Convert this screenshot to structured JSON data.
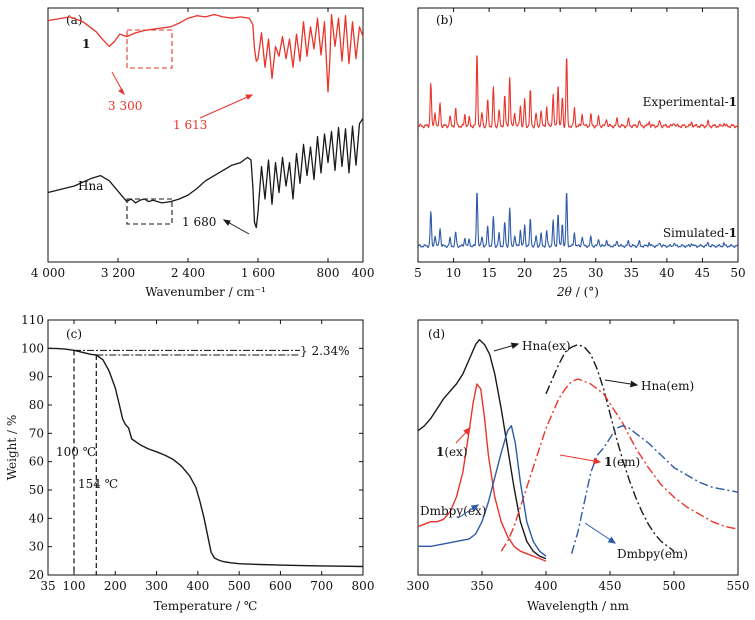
{
  "colors": {
    "black": "#1a1a1a",
    "red": "#e8352b",
    "blue": "#2e5aa8",
    "pink_dash": "#e8352b"
  },
  "chart_data": [
    {
      "panel": "(a)",
      "type": "line",
      "xlabel": "Wavenumber / cm⁻¹",
      "ylabel": "",
      "xlim": [
        4000,
        400
      ],
      "x_ticks": [
        "4 000",
        "3 200",
        "2 400",
        "1 600",
        "800",
        "400"
      ],
      "x_tick_values": [
        4000,
        3200,
        2400,
        1600,
        800,
        400
      ],
      "series": [
        {
          "name": "1",
          "color": "red",
          "x": [
            4000,
            3750,
            3600,
            3450,
            3380,
            3300,
            3240,
            3180,
            3100,
            3000,
            2900,
            2800,
            2700,
            2600,
            2500,
            2400,
            2300,
            2200,
            2100,
            2000,
            1900,
            1800,
            1700,
            1660,
            1640,
            1620,
            1600,
            1560,
            1520,
            1480,
            1440,
            1400,
            1360,
            1320,
            1280,
            1240,
            1200,
            1160,
            1120,
            1080,
            1040,
            1000,
            960,
            920,
            880,
            840,
            800,
            780,
            760,
            720,
            680,
            640,
            600,
            560,
            520,
            480,
            440,
            400
          ],
          "y": [
            0.93,
            0.96,
            0.92,
            0.84,
            0.78,
            0.72,
            0.76,
            0.82,
            0.8,
            0.83,
            0.85,
            0.86,
            0.87,
            0.88,
            0.91,
            0.95,
            0.97,
            0.96,
            0.98,
            0.96,
            0.95,
            0.96,
            0.95,
            0.9,
            0.7,
            0.6,
            0.62,
            0.83,
            0.55,
            0.78,
            0.46,
            0.72,
            0.64,
            0.8,
            0.62,
            0.78,
            0.55,
            0.82,
            0.6,
            0.92,
            0.64,
            0.88,
            0.7,
            0.95,
            0.65,
            0.92,
            0.35,
            0.6,
            0.98,
            0.72,
            0.95,
            0.6,
            0.97,
            0.58,
            0.92,
            0.62,
            0.88,
            0.8
          ]
        },
        {
          "name": "Hna",
          "color": "black",
          "x": [
            4000,
            3700,
            3500,
            3400,
            3300,
            3200,
            3150,
            3100,
            3050,
            3000,
            2950,
            2900,
            2850,
            2800,
            2700,
            2600,
            2500,
            2400,
            2300,
            2200,
            2100,
            2000,
            1900,
            1800,
            1720,
            1680,
            1660,
            1640,
            1620,
            1600,
            1560,
            1520,
            1480,
            1440,
            1400,
            1360,
            1320,
            1280,
            1240,
            1200,
            1160,
            1120,
            1080,
            1040,
            1000,
            960,
            920,
            880,
            840,
            800,
            760,
            720,
            680,
            640,
            600,
            560,
            520,
            480,
            440,
            400
          ],
          "y": [
            0.35,
            0.4,
            0.46,
            0.48,
            0.44,
            0.36,
            0.32,
            0.28,
            0.3,
            0.27,
            0.29,
            0.3,
            0.28,
            0.29,
            0.27,
            0.28,
            0.3,
            0.33,
            0.38,
            0.44,
            0.48,
            0.52,
            0.56,
            0.58,
            0.62,
            0.6,
            0.4,
            0.12,
            0.08,
            0.2,
            0.55,
            0.3,
            0.6,
            0.26,
            0.58,
            0.35,
            0.62,
            0.4,
            0.58,
            0.3,
            0.65,
            0.42,
            0.72,
            0.48,
            0.7,
            0.45,
            0.78,
            0.5,
            0.8,
            0.58,
            0.82,
            0.52,
            0.85,
            0.55,
            0.84,
            0.5,
            0.86,
            0.56,
            0.88,
            0.92
          ]
        }
      ],
      "annotations": [
        "1",
        "3 300",
        "1 613",
        "Hna",
        "1 680"
      ]
    },
    {
      "panel": "(b)",
      "type": "line",
      "xlabel": "2θ / (°)",
      "xlim": [
        5,
        50
      ],
      "x_ticks": [
        "5",
        "10",
        "15",
        "20",
        "25",
        "30",
        "35",
        "40",
        "45",
        "50"
      ],
      "x_tick_values": [
        5,
        10,
        15,
        20,
        25,
        30,
        35,
        40,
        45,
        50
      ],
      "series": [
        {
          "name": "Experimental-1",
          "color": "red"
        },
        {
          "name": "Simulated-1",
          "color": "blue"
        }
      ],
      "peaks_2theta": [
        6.8,
        7.4,
        8.1,
        9.5,
        10.3,
        11.6,
        12.2,
        13.3,
        14.0,
        14.8,
        15.6,
        16.4,
        17.2,
        17.9,
        18.6,
        19.4,
        20.0,
        20.8,
        21.6,
        22.3,
        23.1,
        24.0,
        24.7,
        25.3,
        25.9,
        27.0,
        28.1,
        29.3,
        30.4,
        31.5,
        33.0,
        34.6,
        36.1,
        37.5,
        39.0,
        41.0,
        43.5,
        45.8,
        48.0
      ],
      "peak_heights": [
        0.55,
        0.18,
        0.3,
        0.12,
        0.22,
        0.14,
        0.1,
        0.92,
        0.16,
        0.32,
        0.48,
        0.2,
        0.38,
        0.62,
        0.18,
        0.26,
        0.34,
        0.44,
        0.16,
        0.2,
        0.24,
        0.4,
        0.52,
        0.36,
        0.88,
        0.22,
        0.16,
        0.14,
        0.12,
        0.1,
        0.09,
        0.08,
        0.07,
        0.06,
        0.06,
        0.05,
        0.05,
        0.05,
        0.04
      ]
    },
    {
      "panel": "(c)",
      "type": "line",
      "xlabel": "Temperature / ℃",
      "ylabel": "Weight / %",
      "xlim": [
        35,
        800
      ],
      "ylim": [
        20,
        110
      ],
      "x_ticks": [
        "35",
        "100",
        "200",
        "300",
        "400",
        "500",
        "600",
        "700",
        "800"
      ],
      "x_tick_values": [
        35,
        100,
        200,
        300,
        400,
        500,
        600,
        700,
        800
      ],
      "y_ticks": [
        "20",
        "30",
        "40",
        "50",
        "60",
        "70",
        "80",
        "90",
        "100",
        "110"
      ],
      "y_tick_values": [
        20,
        30,
        40,
        50,
        60,
        70,
        80,
        90,
        100,
        110
      ],
      "series": [
        {
          "name": "",
          "color": "black",
          "x": [
            35,
            60,
            80,
            100,
            120,
            140,
            154,
            170,
            185,
            200,
            210,
            218,
            225,
            232,
            240,
            260,
            280,
            300,
            320,
            340,
            360,
            380,
            395,
            405,
            415,
            425,
            432,
            440,
            450,
            460,
            480,
            500,
            550,
            600,
            650,
            700,
            750,
            800
          ],
          "y": [
            100,
            99.9,
            99.7,
            99.3,
            98.6,
            97.9,
            97.66,
            96,
            92,
            86,
            80,
            75,
            73,
            72,
            68,
            66,
            64.5,
            63.5,
            62.3,
            60.8,
            58.5,
            55,
            51,
            46,
            40,
            33,
            28,
            26,
            25.3,
            24.8,
            24.3,
            24,
            23.7,
            23.5,
            23.3,
            23.2,
            23.1,
            23
          ]
        }
      ],
      "annotations": [
        "2.34%",
        "100 ℃",
        "154 ℃"
      ]
    },
    {
      "panel": "(d)",
      "type": "line",
      "xlabel": "Wavelength / nm",
      "xlim": [
        300,
        550
      ],
      "x_ticks": [
        "300",
        "350",
        "400",
        "450",
        "500",
        "550"
      ],
      "x_tick_values": [
        300,
        350,
        400,
        450,
        500,
        550
      ],
      "series": [
        {
          "name": "Hna(ex)",
          "color": "black",
          "dash": "solid",
          "x": [
            300,
            305,
            310,
            315,
            320,
            325,
            330,
            335,
            340,
            345,
            348,
            352,
            356,
            360,
            365,
            370,
            375,
            380,
            385,
            390,
            395,
            400
          ],
          "y": [
            0.55,
            0.57,
            0.6,
            0.64,
            0.68,
            0.71,
            0.74,
            0.78,
            0.84,
            0.9,
            0.92,
            0.9,
            0.86,
            0.78,
            0.64,
            0.48,
            0.32,
            0.18,
            0.1,
            0.06,
            0.04,
            0.03
          ]
        },
        {
          "name": "Hna(em)",
          "color": "black",
          "dash": "dashdot",
          "x": [
            400,
            405,
            410,
            415,
            420,
            425,
            430,
            435,
            440,
            445,
            450,
            455,
            460,
            465,
            470,
            475,
            480,
            485,
            490,
            495,
            500
          ],
          "y": [
            0.7,
            0.76,
            0.82,
            0.87,
            0.89,
            0.9,
            0.89,
            0.86,
            0.8,
            0.72,
            0.62,
            0.52,
            0.43,
            0.35,
            0.28,
            0.22,
            0.17,
            0.13,
            0.1,
            0.08,
            0.06
          ]
        },
        {
          "name": "1(ex)",
          "color": "red",
          "dash": "solid",
          "x": [
            300,
            305,
            310,
            315,
            320,
            325,
            330,
            335,
            340,
            343,
            346,
            349,
            352,
            355,
            360,
            365,
            370,
            375,
            380,
            385,
            390,
            395,
            400
          ],
          "y": [
            0.16,
            0.17,
            0.18,
            0.18,
            0.19,
            0.22,
            0.28,
            0.38,
            0.55,
            0.66,
            0.74,
            0.72,
            0.6,
            0.45,
            0.28,
            0.18,
            0.12,
            0.08,
            0.06,
            0.05,
            0.04,
            0.03,
            0.02
          ]
        },
        {
          "name": "1(em)",
          "color": "red",
          "dash": "dashdot",
          "x": [
            365,
            370,
            375,
            380,
            385,
            390,
            395,
            400,
            405,
            410,
            415,
            420,
            425,
            430,
            435,
            440,
            445,
            450,
            460,
            470,
            480,
            490,
            500,
            510,
            520,
            530,
            540,
            550
          ],
          "y": [
            0.06,
            0.1,
            0.16,
            0.24,
            0.32,
            0.4,
            0.48,
            0.56,
            0.62,
            0.68,
            0.72,
            0.75,
            0.76,
            0.75,
            0.74,
            0.72,
            0.7,
            0.66,
            0.58,
            0.48,
            0.4,
            0.33,
            0.28,
            0.24,
            0.21,
            0.18,
            0.16,
            0.15
          ]
        },
        {
          "name": "Dmbpy(ex)",
          "color": "blue",
          "dash": "solid",
          "x": [
            300,
            310,
            320,
            330,
            340,
            345,
            350,
            355,
            360,
            365,
            370,
            373,
            376,
            380,
            385,
            390,
            395,
            400
          ],
          "y": [
            0.08,
            0.08,
            0.09,
            0.1,
            0.11,
            0.13,
            0.18,
            0.26,
            0.36,
            0.46,
            0.55,
            0.57,
            0.5,
            0.34,
            0.18,
            0.1,
            0.06,
            0.04
          ]
        },
        {
          "name": "Dmbpy(em)",
          "color": "blue",
          "dash": "dashdot",
          "x": [
            420,
            425,
            430,
            435,
            440,
            445,
            450,
            455,
            460,
            465,
            470,
            480,
            490,
            500,
            510,
            520,
            530,
            540,
            550
          ],
          "y": [
            0.05,
            0.14,
            0.26,
            0.38,
            0.45,
            0.48,
            0.52,
            0.56,
            0.57,
            0.56,
            0.54,
            0.5,
            0.45,
            0.4,
            0.37,
            0.34,
            0.32,
            0.31,
            0.3
          ]
        }
      ]
    }
  ],
  "panel_labels": {
    "a": "(a)",
    "b": "(b)",
    "c": "(c)",
    "d": "(d)"
  },
  "labels": {
    "a_series1": "1",
    "a_3300": "3 300",
    "a_1613": "1 613",
    "a_hna": "Hna",
    "a_1680": "1 680",
    "a_xlabel": "Wavenumber / cm⁻¹",
    "b_exp": "Experimental-",
    "b_sim": "Simulated-",
    "b_one": "1",
    "b_xlabel_theta": "2θ",
    "b_xlabel_unit": " / (°)",
    "c_xlabel": "Temperature / ℃",
    "c_ylabel": "Weight / %",
    "c_pct": "} 2.34%",
    "c_100": "100 ℃",
    "c_154": "154 ℃",
    "d_xlabel": "Wavelength / nm",
    "d_hnaex": "Hna(ex)",
    "d_hnaem": "Hna(em)",
    "d_1ex": "1",
    "d_1ex_suffix": "(ex)",
    "d_1em": "1",
    "d_1em_suffix": "(em)",
    "d_dmbpyex": "Dmbpy(ex)",
    "d_dmbpyem": "Dmbpy(em)"
  }
}
